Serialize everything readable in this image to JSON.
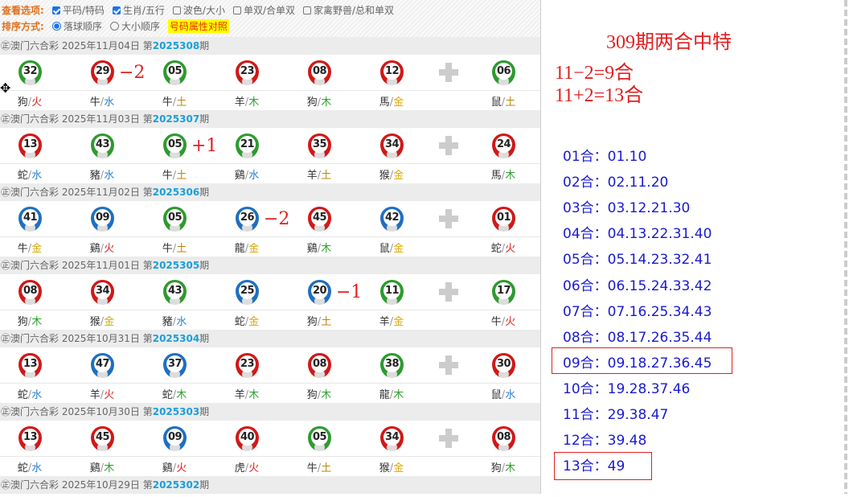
{
  "options": {
    "view_label": "查看选项:",
    "view_items": [
      {
        "label": "平码/特码",
        "checked": true
      },
      {
        "label": "生肖/五行",
        "checked": true
      },
      {
        "label": "波色/大小",
        "checked": false
      },
      {
        "label": "单双/合单双",
        "checked": false
      },
      {
        "label": "家禽野兽/总和单双",
        "checked": false
      }
    ],
    "sort_label": "排序方式:",
    "sort_items": [
      {
        "label": "落球顺序",
        "selected": true
      },
      {
        "label": "大小顺序",
        "selected": false
      }
    ],
    "compare_link": "号码属性对照"
  },
  "element_colors": {
    "金": "#d4a800",
    "木": "#2ea02e",
    "水": "#2a7fd0",
    "火": "#e02020",
    "土": "#b8860b"
  },
  "draws": [
    {
      "prefix": "㊣澳门六合彩 2025年11月04日 第",
      "issue": "2025308",
      "suffix": "期",
      "balls": [
        [
          "32",
          "green",
          "狗",
          "火"
        ],
        [
          "29",
          "red",
          "牛",
          "水"
        ],
        [
          "05",
          "green",
          "牛",
          "土"
        ],
        [
          "23",
          "red",
          "羊",
          "木"
        ],
        [
          "08",
          "red",
          "狗",
          "木"
        ],
        [
          "12",
          "red",
          "馬",
          "金"
        ],
        [
          "06",
          "green",
          "鼠",
          "土"
        ]
      ],
      "note": {
        "after": 1,
        "text": "−2"
      }
    },
    {
      "prefix": "㊣澳门六合彩 2025年11月03日 第",
      "issue": "2025307",
      "suffix": "期",
      "balls": [
        [
          "13",
          "red",
          "蛇",
          "水"
        ],
        [
          "43",
          "green",
          "豬",
          "水"
        ],
        [
          "05",
          "green",
          "牛",
          "土"
        ],
        [
          "21",
          "green",
          "鷄",
          "水"
        ],
        [
          "35",
          "red",
          "羊",
          "土"
        ],
        [
          "34",
          "red",
          "猴",
          "金"
        ],
        [
          "24",
          "red",
          "馬",
          "木"
        ]
      ],
      "note": {
        "after": 2,
        "text": "+1"
      }
    },
    {
      "prefix": "㊣澳门六合彩 2025年11月02日 第",
      "issue": "2025306",
      "suffix": "期",
      "balls": [
        [
          "41",
          "blue",
          "牛",
          "金"
        ],
        [
          "09",
          "blue",
          "鷄",
          "火"
        ],
        [
          "05",
          "green",
          "牛",
          "土"
        ],
        [
          "26",
          "blue",
          "龍",
          "金"
        ],
        [
          "45",
          "red",
          "鷄",
          "木"
        ],
        [
          "42",
          "blue",
          "鼠",
          "金"
        ],
        [
          "01",
          "red",
          "蛇",
          "火"
        ]
      ],
      "note": {
        "after": 3,
        "text": "−2"
      }
    },
    {
      "prefix": "㊣澳门六合彩 2025年11月01日 第",
      "issue": "2025305",
      "suffix": "期",
      "balls": [
        [
          "08",
          "red",
          "狗",
          "木"
        ],
        [
          "34",
          "red",
          "猴",
          "金"
        ],
        [
          "43",
          "green",
          "豬",
          "水"
        ],
        [
          "25",
          "blue",
          "蛇",
          "金"
        ],
        [
          "20",
          "blue",
          "狗",
          "土"
        ],
        [
          "11",
          "green",
          "羊",
          "金"
        ],
        [
          "17",
          "green",
          "牛",
          "火"
        ]
      ],
      "note": {
        "after": 4,
        "text": "−1"
      }
    },
    {
      "prefix": "㊣澳门六合彩 2025年10月31日 第",
      "issue": "2025304",
      "suffix": "期",
      "balls": [
        [
          "13",
          "red",
          "蛇",
          "水"
        ],
        [
          "47",
          "blue",
          "羊",
          "火"
        ],
        [
          "37",
          "blue",
          "蛇",
          "木"
        ],
        [
          "23",
          "red",
          "羊",
          "木"
        ],
        [
          "08",
          "red",
          "狗",
          "木"
        ],
        [
          "38",
          "green",
          "龍",
          "木"
        ],
        [
          "30",
          "red",
          "鼠",
          "水"
        ]
      ]
    },
    {
      "prefix": "㊣澳门六合彩 2025年10月30日 第",
      "issue": "2025303",
      "suffix": "期",
      "balls": [
        [
          "13",
          "red",
          "蛇",
          "水"
        ],
        [
          "45",
          "red",
          "鷄",
          "木"
        ],
        [
          "09",
          "blue",
          "鷄",
          "火"
        ],
        [
          "40",
          "red",
          "虎",
          "火"
        ],
        [
          "05",
          "green",
          "牛",
          "土"
        ],
        [
          "34",
          "red",
          "猴",
          "金"
        ],
        [
          "08",
          "red",
          "狗",
          "木"
        ]
      ]
    },
    {
      "prefix": "㊣澳门六合彩 2025年10月29日 第",
      "issue": "2025302",
      "suffix": "期",
      "balls": []
    }
  ],
  "right": {
    "title": "309期两合中特",
    "equations": [
      "11−2=9合",
      "11+2=13合"
    ],
    "he_list": [
      "01合：01.10",
      "02合：02.11.20",
      "03合：03.12.21.30",
      "04合：04.13.22.31.40",
      "05合：05.14.23.32.41",
      "06合：06.15.24.33.42",
      "07合：07.16.25.34.43",
      "08合：08.17.26.35.44",
      "09合：09.18.27.36.45",
      "10合：19.28.37.46",
      "11合：29.38.47",
      "12合：39.48",
      "13合：49"
    ],
    "highlighted": [
      "09合",
      "13合"
    ]
  }
}
